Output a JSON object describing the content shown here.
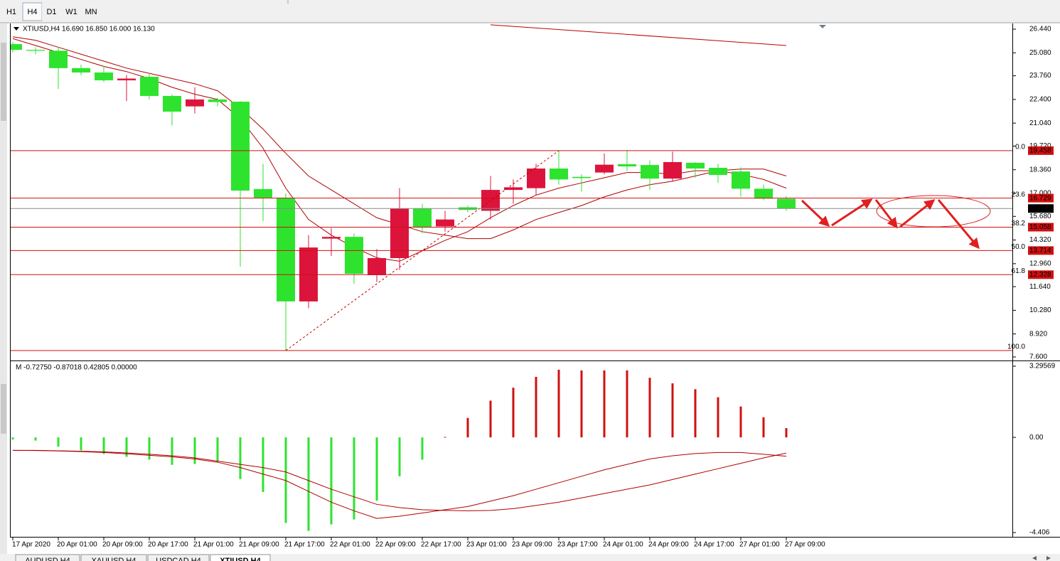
{
  "toolbar": {
    "timeframes": [
      "H1",
      "H4",
      "D1",
      "W1",
      "MN"
    ],
    "active": 1
  },
  "tabs": {
    "items": [
      "AUDUSD,H4",
      "XAUUSD,H4",
      "USDCAD,H4",
      "XTIUSD,H4"
    ],
    "active": 3
  },
  "chart_data": [
    {
      "type": "candlestick",
      "title": "XTIUSD,H4 16.690 16.850 16.000 16.130",
      "categories": [
        "17 Apr 2020",
        null,
        "20 Apr 01:00",
        null,
        "20 Apr 09:00",
        null,
        "20 Apr 17:00",
        null,
        "21 Apr 01:00",
        null,
        "21 Apr 09:00",
        null,
        "21 Apr 17:00",
        null,
        "22 Apr 01:00",
        null,
        "22 Apr 09:00",
        null,
        "22 Apr 17:00",
        null,
        "23 Apr 01:00",
        null,
        "23 Apr 09:00",
        null,
        "23 Apr 17:00",
        null,
        "24 Apr 01:00",
        null,
        "24 Apr 09:00",
        null,
        "24 Apr 17:00",
        null,
        "27 Apr 01:00",
        null,
        "27 Apr 09:00"
      ],
      "open": [
        25.58,
        25.25,
        25.2,
        24.2,
        23.95,
        23.5,
        23.7,
        22.6,
        22.0,
        22.4,
        22.27,
        17.25,
        16.75,
        10.79,
        14.4,
        14.5,
        12.3,
        13.28,
        16.14,
        15.1,
        16.2,
        16.0,
        17.2,
        17.3,
        18.43,
        17.95,
        18.2,
        18.68,
        18.63,
        17.85,
        18.76,
        18.47,
        18.26,
        17.27,
        16.69
      ],
      "high": [
        25.7,
        25.4,
        25.4,
        24.4,
        24.3,
        23.8,
        23.9,
        22.7,
        23.1,
        22.5,
        22.3,
        18.7,
        17.0,
        14.6,
        15.0,
        14.7,
        13.8,
        17.3,
        16.4,
        16.0,
        16.3,
        18.0,
        17.8,
        18.7,
        19.458,
        18.1,
        19.3,
        19.5,
        18.9,
        19.4,
        18.8,
        18.7,
        18.5,
        17.5,
        16.85
      ],
      "low": [
        25.1,
        25.0,
        23.0,
        23.8,
        23.4,
        22.3,
        22.4,
        20.9,
        21.6,
        22.0,
        12.79,
        15.4,
        7.97,
        10.4,
        13.4,
        11.8,
        11.9,
        12.6,
        14.7,
        14.8,
        15.9,
        15.5,
        16.4,
        16.9,
        17.5,
        17.1,
        18.1,
        18.3,
        17.2,
        17.7,
        17.9,
        17.6,
        16.8,
        16.6,
        16.0
      ],
      "close": [
        25.25,
        25.2,
        24.2,
        23.95,
        23.5,
        23.6,
        22.6,
        21.7,
        22.4,
        22.25,
        17.16,
        16.75,
        10.79,
        13.89,
        14.5,
        12.38,
        13.28,
        16.14,
        15.04,
        15.5,
        16.05,
        17.2,
        17.35,
        18.43,
        17.8,
        17.88,
        18.65,
        18.55,
        17.85,
        18.8,
        18.43,
        18.06,
        17.27,
        16.7,
        16.13
      ],
      "up_color": "#dc143c",
      "down_color": "#2ee32e",
      "overlays": [
        {
          "color": "#b00000",
          "values": [
            25.9,
            25.5,
            25.1,
            24.7,
            24.3,
            24.0,
            23.6,
            23.1,
            22.7,
            22.4,
            21.3,
            19.6,
            17.3,
            15.5,
            14.6,
            13.9,
            13.3,
            13.1,
            13.7,
            14.3,
            14.8,
            15.6,
            16.3,
            16.9,
            17.3,
            17.6,
            17.9,
            18.2,
            18.2,
            18.1,
            18.3,
            18.3,
            18.1,
            17.8,
            17.3
          ]
        },
        {
          "color": "#b00000",
          "values": [
            26.0,
            25.8,
            25.4,
            25.0,
            24.6,
            24.2,
            23.9,
            23.6,
            23.3,
            22.9,
            21.9,
            20.7,
            19.3,
            18.0,
            17.2,
            16.4,
            15.6,
            15.2,
            14.8,
            14.6,
            14.4,
            14.4,
            14.9,
            15.5,
            15.9,
            16.3,
            16.8,
            17.2,
            17.5,
            17.7,
            18.0,
            18.3,
            18.4,
            18.4,
            18.0
          ]
        }
      ],
      "levels": [
        {
          "label": "0.0",
          "value": 19.458,
          "price_box": true
        },
        {
          "label": "23.6",
          "value": 16.729,
          "price_box": true
        },
        {
          "label": "38.2",
          "value": 15.058,
          "price_box": true
        },
        {
          "label": "50.0",
          "value": 13.714,
          "price_box": true
        },
        {
          "label": "61.8",
          "value": 12.328,
          "price_box": true
        },
        {
          "label": "100.0",
          "value": 7.97,
          "price_box": false
        }
      ],
      "level_color": "#d01010",
      "last_price": {
        "value": 16.13,
        "label": "16.130"
      },
      "lines": [
        {
          "x": [
            12,
            24
          ],
          "y": [
            7.97,
            19.458
          ],
          "dashed": true,
          "color": "#c00000"
        },
        {
          "x": [
            21,
            34
          ],
          "y": [
            26.69,
            25.5
          ],
          "dashed": false,
          "color": "#c00000"
        }
      ],
      "ylim": [
        7.6,
        26.44
      ],
      "yticks": [
        {
          "value": 7.6,
          "label": "7.600"
        },
        {
          "value": 8.92,
          "label": "8.920"
        },
        {
          "value": 10.28,
          "label": "10.280"
        },
        {
          "value": 11.64,
          "label": "11.640"
        },
        {
          "value": 12.96,
          "label": "12.960"
        },
        {
          "value": 14.32,
          "label": "14.320"
        },
        {
          "value": 15.68,
          "label": "15.680"
        },
        {
          "value": 17.0,
          "label": "17.000"
        },
        {
          "value": 18.36,
          "label": "18.360"
        },
        {
          "value": 19.72,
          "label": "19.720"
        },
        {
          "value": 21.04,
          "label": "21.040"
        },
        {
          "value": 22.4,
          "label": "22.400"
        },
        {
          "value": 23.76,
          "label": "23.760"
        },
        {
          "value": 25.08,
          "label": "25.080"
        },
        {
          "value": 26.44,
          "label": "26.440"
        }
      ]
    },
    {
      "type": "bar",
      "title": "M -0.72750 -0.87018 0.42805 0.00000",
      "values": [
        -0.1,
        -0.15,
        -0.43,
        -0.6,
        -0.77,
        -0.9,
        -1.03,
        -1.27,
        -1.23,
        -1.13,
        -1.93,
        -2.53,
        -3.96,
        -4.33,
        -4.03,
        -3.8,
        -2.93,
        -1.8,
        -1.03,
        0.02,
        0.9,
        1.7,
        2.3,
        2.8,
        3.13,
        3.1,
        3.1,
        3.1,
        2.76,
        2.5,
        2.23,
        1.86,
        1.43,
        0.93,
        0.42805
      ],
      "up_color": "#d01010",
      "down_color": "#2ee32e",
      "lines": [
        {
          "color": "#b00000",
          "values": [
            -0.6,
            -0.61,
            -0.63,
            -0.66,
            -0.7,
            -0.76,
            -0.83,
            -0.9,
            -1.0,
            -1.15,
            -1.4,
            -1.7,
            -2.0,
            -2.5,
            -3.0,
            -3.4,
            -3.75,
            -3.65,
            -3.5,
            -3.35,
            -3.2,
            -2.95,
            -2.7,
            -2.4,
            -2.1,
            -1.8,
            -1.5,
            -1.25,
            -1.0,
            -0.85,
            -0.75,
            -0.7,
            -0.7,
            -0.78,
            -0.87018
          ]
        },
        {
          "color": "#b00000",
          "values": [
            -0.6,
            -0.6,
            -0.62,
            -0.64,
            -0.67,
            -0.72,
            -0.78,
            -0.85,
            -0.95,
            -1.1,
            -1.25,
            -1.4,
            -1.6,
            -2.0,
            -2.4,
            -2.75,
            -3.1,
            -3.25,
            -3.35,
            -3.38,
            -3.4,
            -3.38,
            -3.3,
            -3.15,
            -3.0,
            -2.8,
            -2.6,
            -2.4,
            -2.2,
            -1.95,
            -1.7,
            -1.45,
            -1.2,
            -0.95,
            -0.7275
          ]
        }
      ],
      "ylim": [
        -4.406,
        3.29569
      ],
      "yticks": [
        -4.406,
        {
          "value": 0,
          "label": "0.00"
        },
        3.29569
      ]
    }
  ]
}
